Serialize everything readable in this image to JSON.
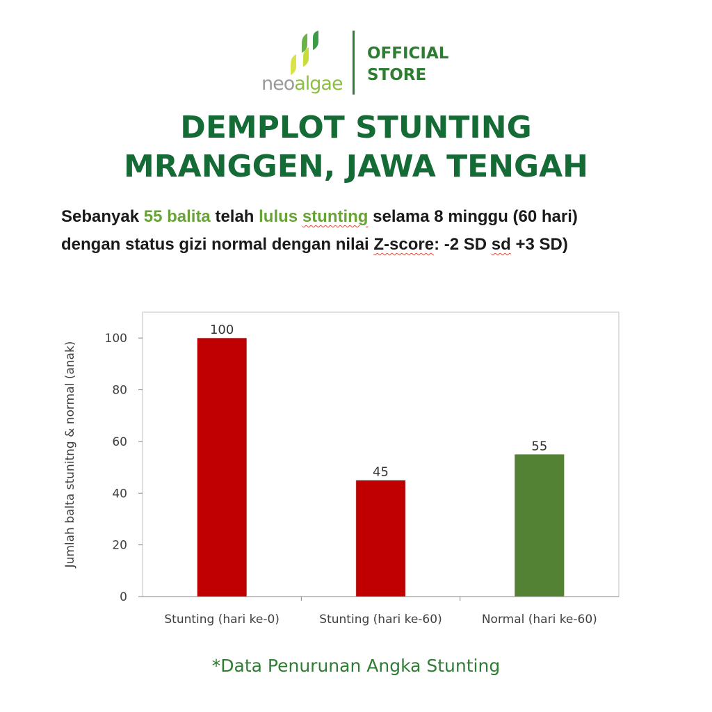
{
  "brand": {
    "logo_part1": "neo",
    "logo_part2": "algae",
    "store_line1": "OFFICIAL",
    "store_line2": "STORE",
    "colors": {
      "dark_green": "#156b36",
      "green": "#2e7d32",
      "lime": "#8cbf3f",
      "grey": "#9a9a9a"
    }
  },
  "headline": {
    "line1": "DEMPLOT STUNTING",
    "line2": "MRANGGEN, JAWA TENGAH"
  },
  "subline": {
    "s1": "Sebanyak ",
    "s2": "55 balita",
    "s3": " telah ",
    "s4": "lulus",
    "s5": " ",
    "s6": "stunting",
    "s7": " selama 8 minggu (60 hari)",
    "s8": "dengan status gizi normal dengan nilai ",
    "s9": "Z-score",
    "s10": ": -2 SD ",
    "s11": "sd",
    "s12": " +3 SD)"
  },
  "chart_data": {
    "type": "bar",
    "categories": [
      "Stunting (hari ke-0)",
      "Stunting (hari ke-60)",
      "Normal (hari ke-60)"
    ],
    "values": [
      100,
      45,
      55
    ],
    "bar_colors": [
      "#c00000",
      "#c00000",
      "#548235"
    ],
    "data_labels": [
      "100",
      "45",
      "55"
    ],
    "ylabel": "Jumlah balta stunitng & normal (anak)",
    "xlabel": "",
    "ylim": [
      0,
      110
    ],
    "yticks": [
      0,
      20,
      40,
      60,
      80,
      100
    ],
    "grid": false,
    "legend": "none"
  },
  "footnote": "*Data Penurunan Angka Stunting"
}
